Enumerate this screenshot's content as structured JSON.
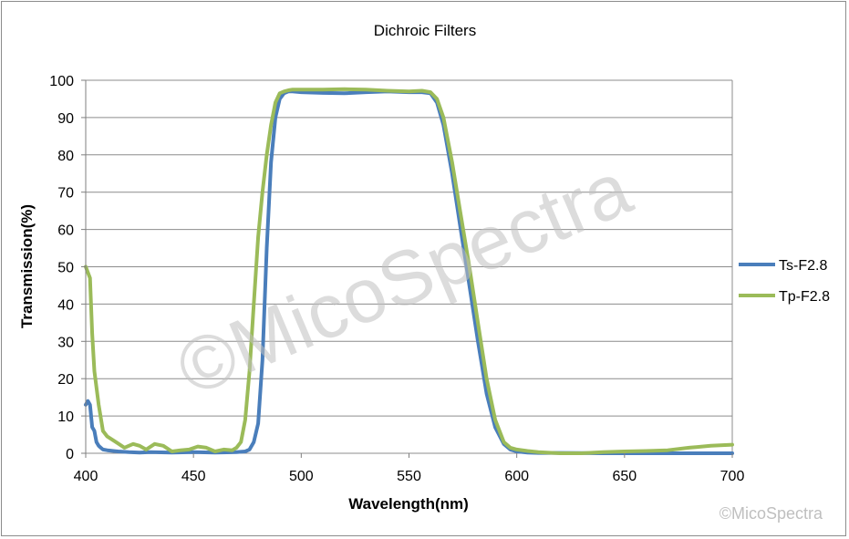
{
  "chart_data": {
    "type": "line",
    "title": "Dichroic Filters",
    "xlabel": "Wavelength(nm)",
    "ylabel": "Transmission(%)",
    "xlim": [
      400,
      700
    ],
    "ylim": [
      0,
      100
    ],
    "xticks": [
      400,
      450,
      500,
      550,
      600,
      650,
      700
    ],
    "yticks": [
      0,
      10,
      20,
      30,
      40,
      50,
      60,
      70,
      80,
      90,
      100
    ],
    "grid": "horizontal",
    "legend_position": "right",
    "series": [
      {
        "name": "Ts-F2.8",
        "color": "#4a7ebb",
        "x": [
          400,
          401,
          402,
          403,
          404,
          405,
          406,
          407,
          408,
          410,
          415,
          420,
          425,
          430,
          440,
          450,
          460,
          470,
          474,
          476,
          478,
          480,
          482,
          484,
          486,
          488,
          490,
          492,
          494,
          496,
          500,
          510,
          520,
          530,
          540,
          550,
          556,
          560,
          563,
          566,
          570,
          574,
          578,
          582,
          586,
          590,
          594,
          597,
          600,
          605,
          610,
          620,
          640,
          660,
          680,
          700
        ],
        "y": [
          13,
          14,
          13,
          7,
          6,
          3,
          2,
          1.5,
          1,
          0.8,
          0.5,
          0.3,
          0.2,
          0.3,
          0.2,
          0.3,
          0.2,
          0.3,
          0.5,
          1,
          3,
          8,
          25,
          55,
          78,
          90,
          95,
          96.5,
          97,
          97,
          96.8,
          96.6,
          96.5,
          96.8,
          97,
          96.8,
          96.8,
          96.5,
          94,
          88,
          75,
          60,
          45,
          30,
          16,
          7,
          2.5,
          1,
          0.5,
          0.2,
          0.1,
          0.1,
          0,
          0,
          0,
          0
        ]
      },
      {
        "name": "Tp-F2.8",
        "color": "#9bbb59",
        "x": [
          400,
          402,
          403,
          404,
          406,
          408,
          410,
          414,
          418,
          420,
          422,
          425,
          428,
          432,
          436,
          440,
          444,
          448,
          452,
          456,
          460,
          464,
          468,
          470,
          472,
          474,
          476,
          478,
          480,
          482,
          484,
          486,
          488,
          490,
          492,
          494,
          496,
          500,
          510,
          520,
          530,
          540,
          550,
          556,
          560,
          563,
          566,
          570,
          574,
          578,
          582,
          586,
          590,
          594,
          597,
          600,
          605,
          610,
          620,
          630,
          640,
          650,
          660,
          670,
          680,
          690,
          700
        ],
        "y": [
          50,
          47,
          32,
          22,
          13,
          6,
          4.5,
          3,
          1.5,
          2,
          2.5,
          2,
          1,
          2.5,
          2,
          0.5,
          0.8,
          1,
          1.8,
          1.5,
          0.5,
          1,
          0.8,
          1.5,
          3,
          9,
          22,
          40,
          58,
          70,
          80,
          88,
          94,
          96.5,
          97,
          97.3,
          97.5,
          97.5,
          97.5,
          97.6,
          97.5,
          97.2,
          97,
          97.2,
          96.8,
          95,
          90,
          78,
          64,
          50,
          35,
          20,
          9,
          3,
          1.5,
          1,
          0.6,
          0.3,
          0,
          0,
          0.3,
          0.5,
          0.6,
          0.8,
          1.5,
          2,
          2.3
        ]
      }
    ]
  },
  "watermark": {
    "main": "©MicoSpectra",
    "corner": "©MicoSpectra"
  }
}
